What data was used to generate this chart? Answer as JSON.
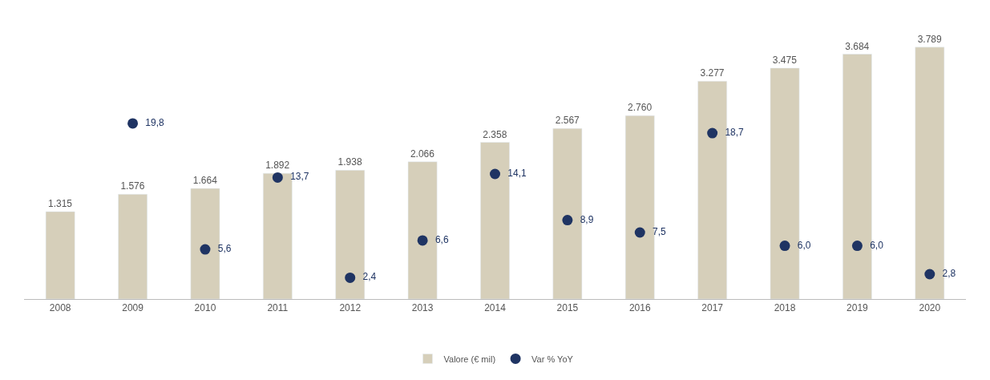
{
  "chart_data": {
    "type": "bar",
    "categories": [
      "2008",
      "2009",
      "2010",
      "2011",
      "2012",
      "2013",
      "2014",
      "2015",
      "2016",
      "2017",
      "2018",
      "2019",
      "2020"
    ],
    "series": [
      {
        "name": "Valore (€ mil)",
        "color": "#d6cfba",
        "values": [
          1315,
          1576,
          1664,
          1892,
          1938,
          2066,
          2358,
          2567,
          2760,
          3277,
          3475,
          3684,
          3789
        ],
        "value_labels": [
          "1.315",
          "1.576",
          "1.664",
          "1.892",
          "1.938",
          "2.066",
          "2.358",
          "2.567",
          "2.760",
          "3.277",
          "3.475",
          "3.684",
          "3.789"
        ]
      },
      {
        "name": "Var % YoY",
        "type": "scatter",
        "axis": "y2",
        "color": "#1f3463",
        "values": [
          null,
          19.8,
          5.6,
          13.7,
          2.4,
          6.6,
          14.1,
          8.9,
          7.5,
          18.7,
          6.0,
          6.0,
          2.8
        ],
        "value_labels": [
          null,
          "19,8",
          "5,6",
          "13,7",
          "2,4",
          "6,6",
          "14,1",
          "8,9",
          "7,5",
          "18,7",
          "6,0",
          "6,0",
          "2,8"
        ]
      }
    ],
    "tick_labels": "x",
    "legend": "bottom",
    "marker": "circle"
  }
}
